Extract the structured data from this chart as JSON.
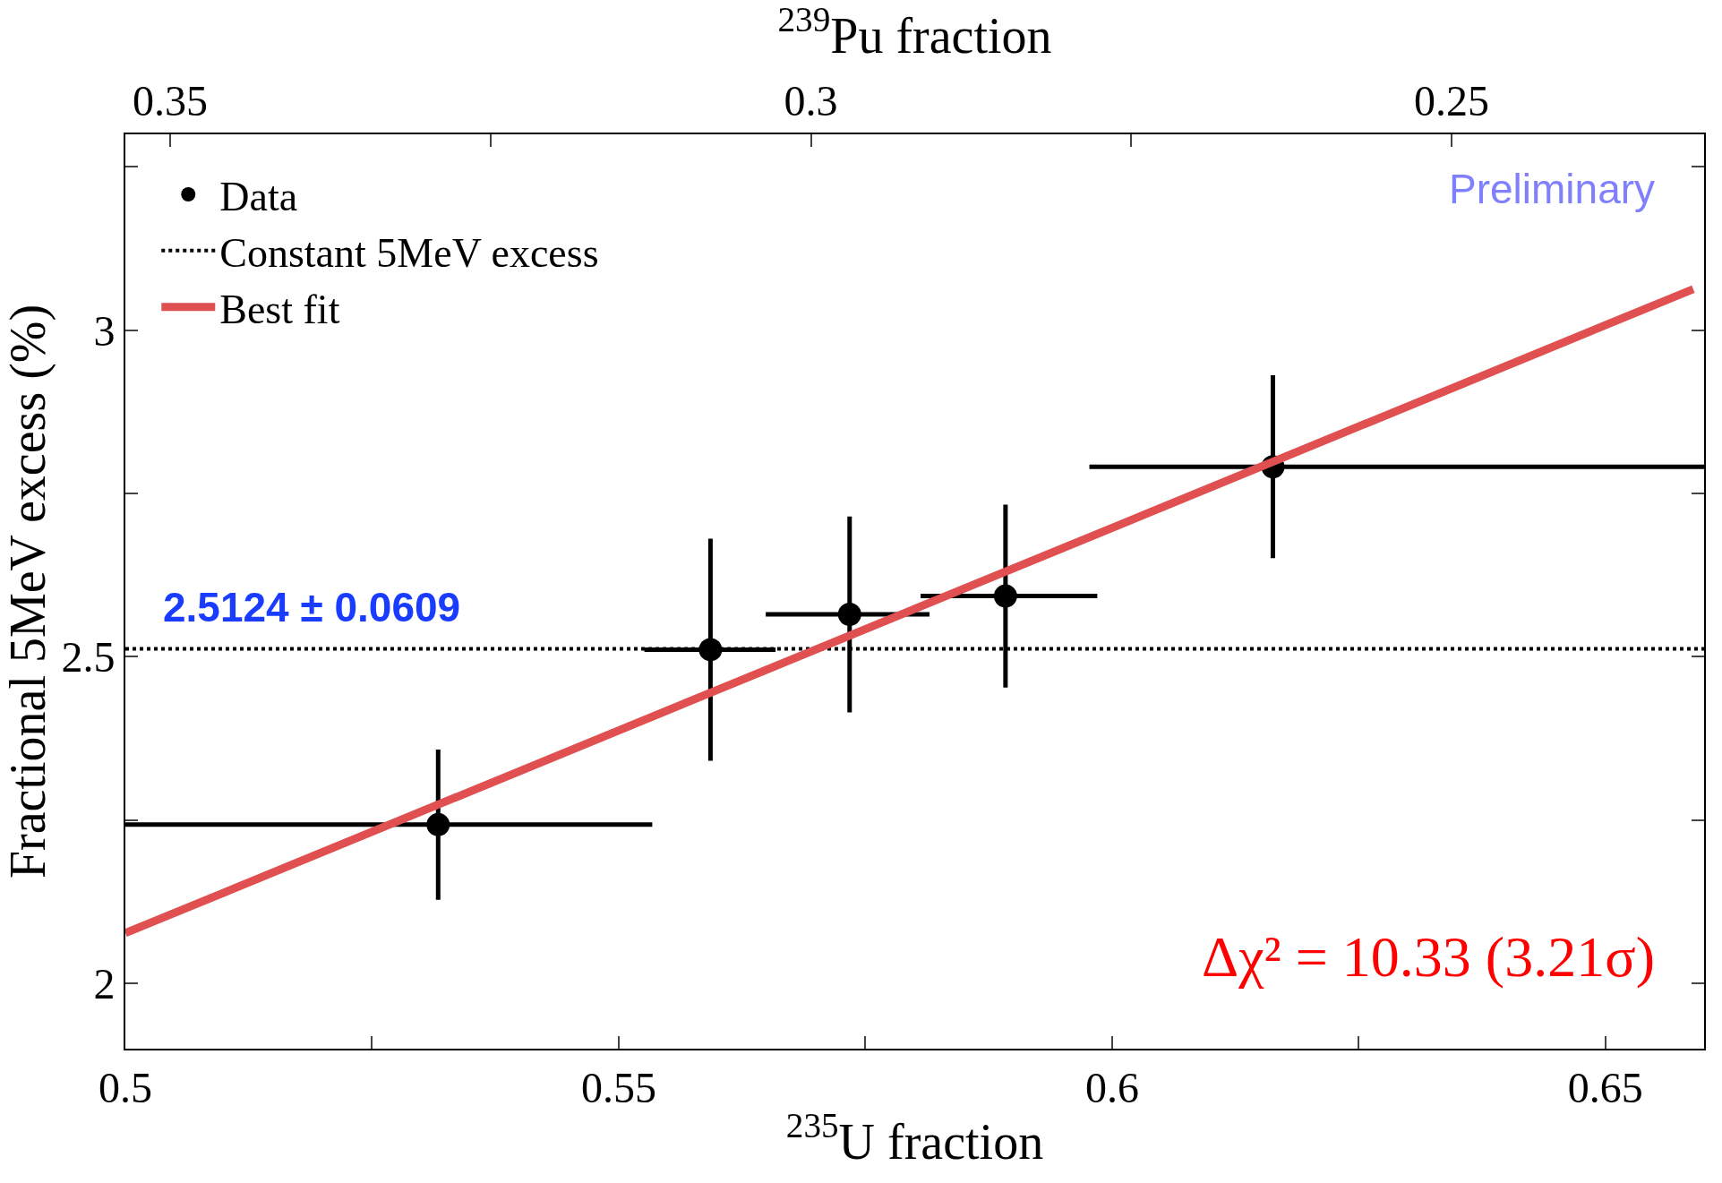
{
  "chart_data": {
    "type": "scatter",
    "xlabel": "$^{235}$U fraction",
    "x2label": "$^{239}$Pu fraction",
    "ylabel": "Fractional 5MeV excess (%)",
    "xlim": [
      0.5,
      0.66
    ],
    "xticks": [
      0.5,
      {
        "value": 0.525,
        "label": null
      },
      0.55,
      {
        "value": 0.575,
        "label": null
      },
      0.6,
      {
        "value": 0.625,
        "label": null
      },
      0.65
    ],
    "x2lim": [
      0.3535,
      0.2303
    ],
    "x2ticks": [
      0.35,
      {
        "value": 0.325,
        "label": null
      },
      0.3,
      {
        "value": 0.275,
        "label": null
      },
      0.25
    ],
    "ylim": [
      1.9,
      3.3
    ],
    "yticks": [
      2,
      {
        "value": 2.25,
        "label": null
      },
      2.5,
      {
        "value": 2.75,
        "label": null
      },
      3,
      {
        "value": 3.25,
        "label": null
      }
    ],
    "legend": "top left",
    "series": [
      {
        "name": "Data",
        "color": "#000000",
        "marker": "circle",
        "x": [
          0.5317,
          0.5593,
          0.5734,
          0.5892,
          0.6163
        ],
        "values": [
          2.243,
          2.511,
          2.565,
          2.593,
          2.791
        ],
        "errors": [
          0.115,
          0.17,
          0.15,
          0.14,
          0.14
        ],
        "xerrors": [
          [
            0.5,
            0.5534
          ],
          [
            0.5526,
            0.5659
          ],
          [
            0.5649,
            0.5815
          ],
          [
            0.5806,
            0.5985
          ],
          [
            0.5977,
            0.66
          ]
        ]
      },
      {
        "name": "Constant 5MeV excess",
        "type": "line",
        "color": "#000000",
        "line_style": "dotted",
        "x": [
          0.5,
          0.66
        ],
        "values": [
          2.5124,
          2.5124
        ]
      },
      {
        "name": "Best fit",
        "type": "line",
        "color": "#e05050",
        "line_style": "solid",
        "x": [
          0.5,
          0.6589
        ],
        "values": [
          2.077,
          3.063
        ]
      }
    ],
    "annotations": [
      {
        "text": "2.5124 ± 0.0609",
        "x": 0.5,
        "y": 2.5124
      },
      "Preliminary",
      "Δχ² = 10.33 (3.21σ)"
    ]
  }
}
